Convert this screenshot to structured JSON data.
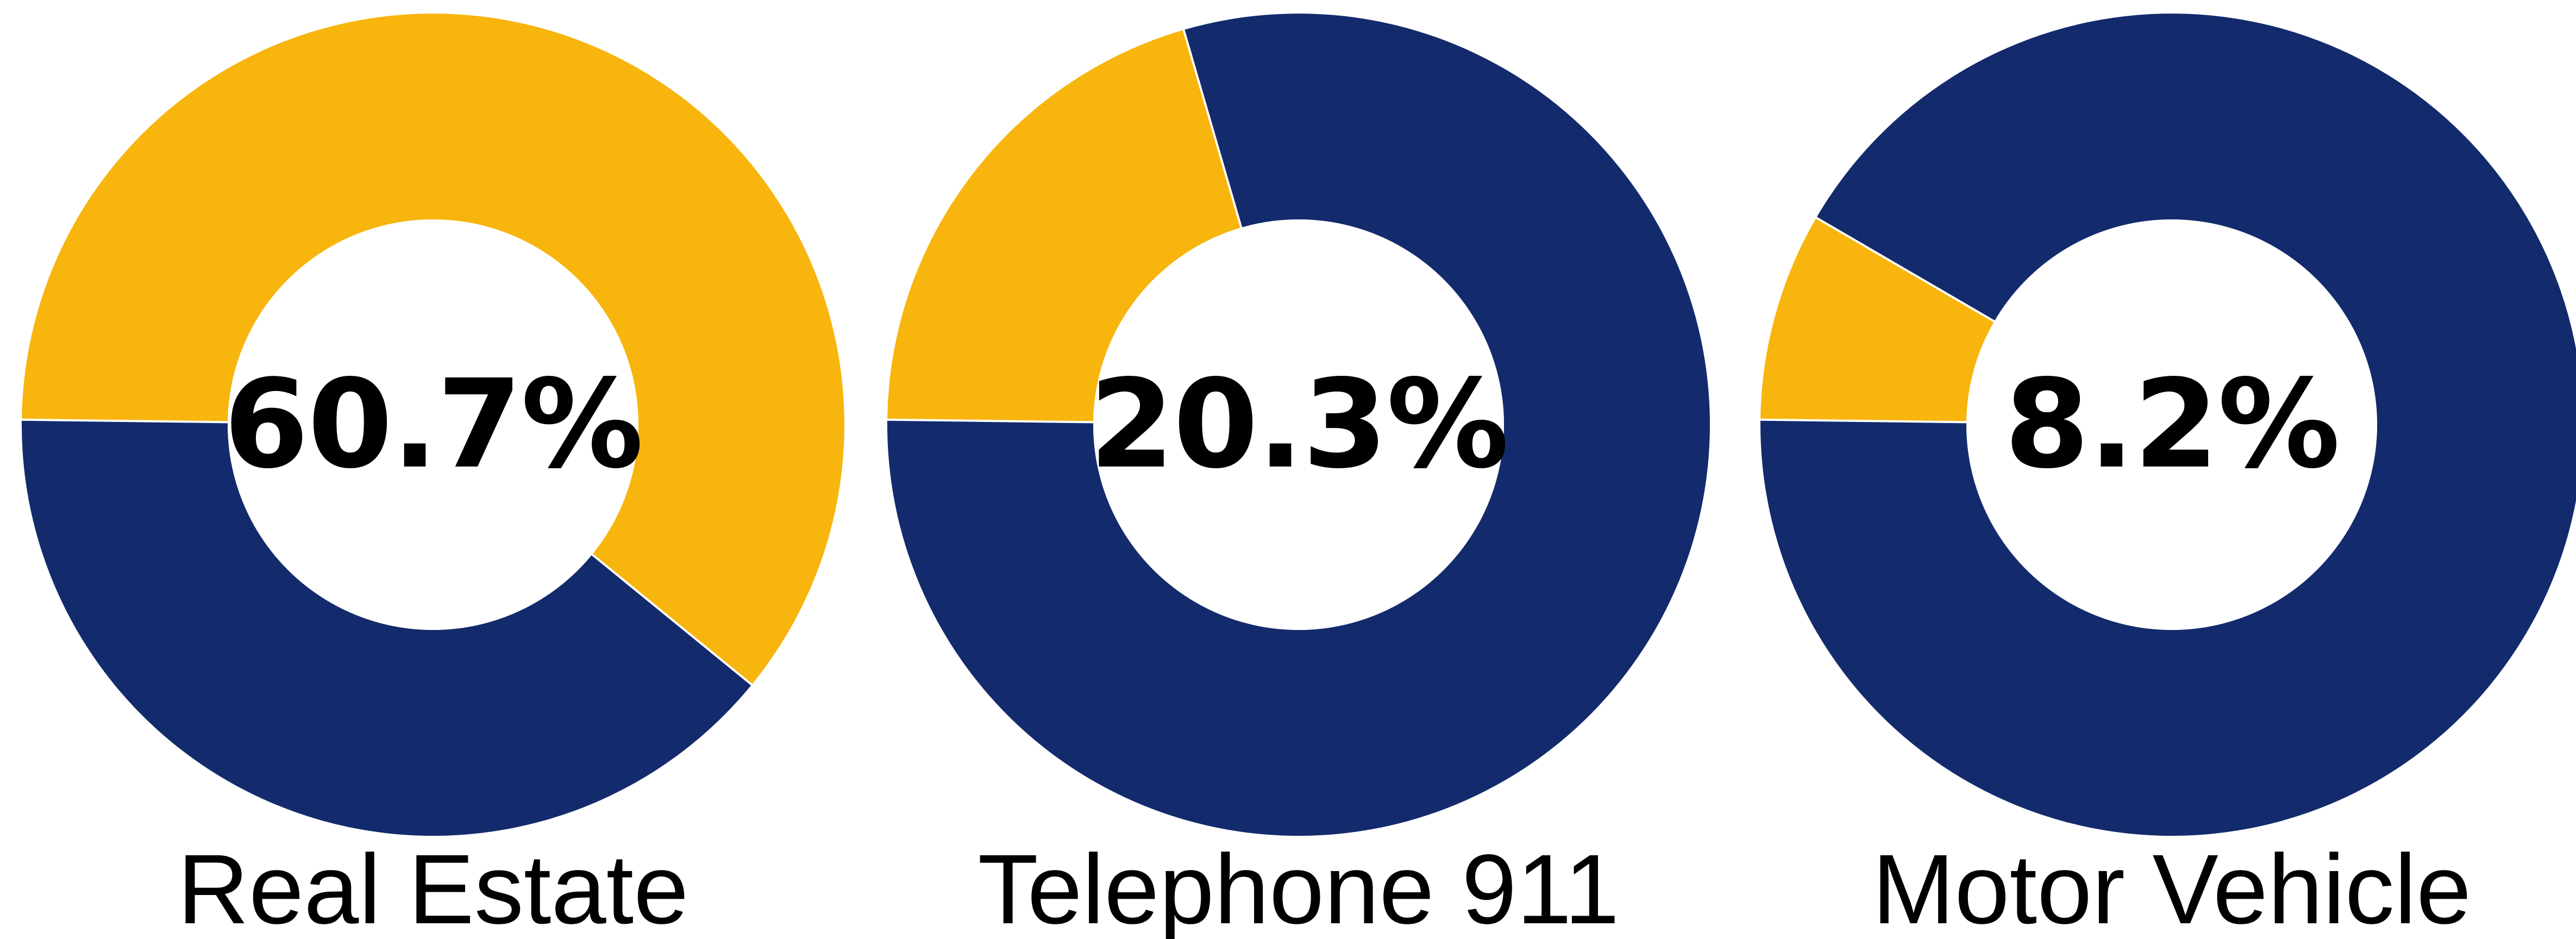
{
  "colors": {
    "share": "#F7B50D",
    "remainder": "#132B6C",
    "center": "#FFFFFF"
  },
  "chart_data": [
    {
      "type": "pie",
      "label": "Real Estate",
      "center_label": "60.7%",
      "values": [
        60.7,
        39.3
      ],
      "slice_colors": [
        "#F7B50D",
        "#132B6C"
      ]
    },
    {
      "type": "pie",
      "label": "Telephone 911",
      "center_label": "20.3%",
      "values": [
        20.3,
        79.7
      ],
      "slice_colors": [
        "#F7B50D",
        "#132B6C"
      ]
    },
    {
      "type": "pie",
      "label": "Motor Vehicle",
      "center_label": "8.2%",
      "values": [
        8.2,
        91.8
      ],
      "slice_colors": [
        "#F7B50D",
        "#132B6C"
      ]
    }
  ]
}
